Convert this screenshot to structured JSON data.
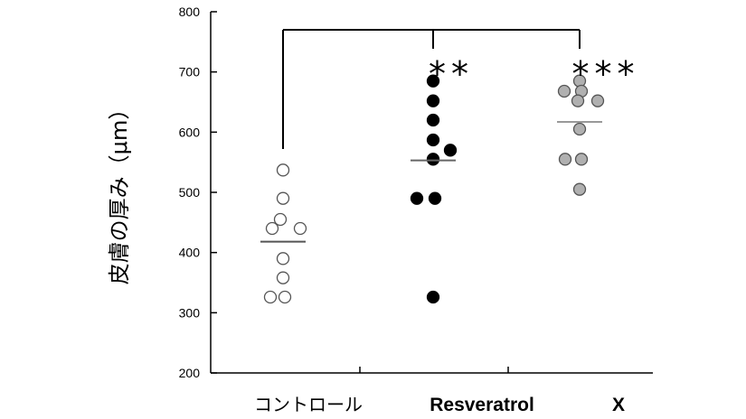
{
  "chart_data": {
    "type": "scatter",
    "title": "",
    "ylabel": "皮膚の厚み（μm）",
    "ylim": [
      200,
      800
    ],
    "yticks": [
      200,
      300,
      400,
      500,
      600,
      700,
      800
    ],
    "categories": [
      "コントロール",
      "Resveratrol",
      "X"
    ],
    "grid": false,
    "legend": "none",
    "series": [
      {
        "values": [
          537,
          490,
          455,
          440,
          440,
          390,
          358,
          326,
          326
        ],
        "mean": 418,
        "marker": "open-circle",
        "color": "#ffffff"
      },
      {
        "values": [
          685,
          652,
          620,
          587,
          570,
          555,
          490,
          490,
          326
        ],
        "mean": 553,
        "marker": "filled-circle",
        "color": "#000000",
        "significance": "**"
      },
      {
        "values": [
          685,
          668,
          668,
          652,
          652,
          605,
          555,
          555,
          505
        ],
        "mean": 617,
        "marker": "gray-circle",
        "color": "#b0b0b0",
        "significance": "***"
      }
    ],
    "comparison_bracket": {
      "from": "コントロール",
      "to": [
        "Resveratrol",
        "X"
      ]
    }
  }
}
